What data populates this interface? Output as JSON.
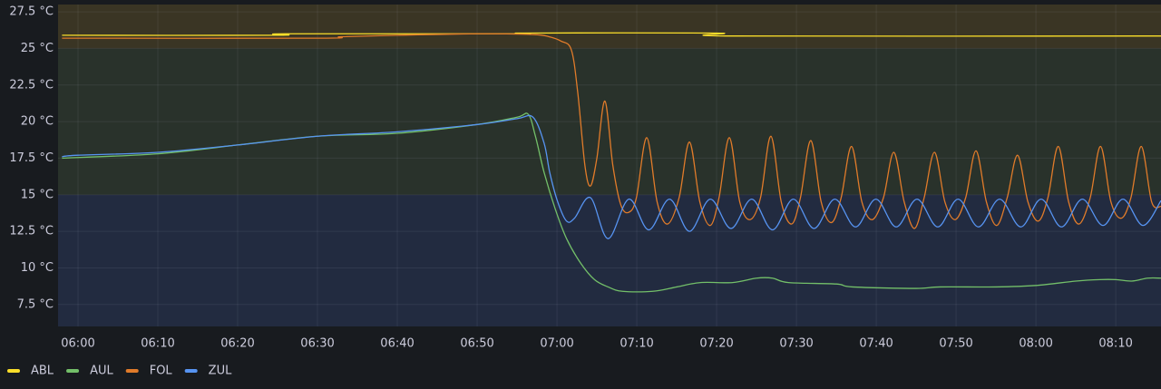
{
  "chart_data": {
    "type": "line",
    "ylim": [
      6,
      28
    ],
    "yticks": [
      {
        "value": 7.5,
        "label": "7.5 °C"
      },
      {
        "value": 10,
        "label": "10 °C"
      },
      {
        "value": 12.5,
        "label": "12.5 °C"
      },
      {
        "value": 15,
        "label": "15 °C"
      },
      {
        "value": 17.5,
        "label": "17.5 °C"
      },
      {
        "value": 20,
        "label": "20 °C"
      },
      {
        "value": 22.5,
        "label": "22.5 °C"
      },
      {
        "value": 25,
        "label": "25 °C"
      },
      {
        "value": 27.5,
        "label": "27.5 °C"
      }
    ],
    "xlim": [
      "05:57:30",
      "08:15:40"
    ],
    "xticks": [
      "06:00",
      "06:10",
      "06:20",
      "06:30",
      "06:40",
      "06:50",
      "07:00",
      "07:10",
      "07:20",
      "07:30",
      "07:40",
      "07:50",
      "08:00",
      "08:10"
    ],
    "grid": true,
    "legend": "bottom-left",
    "thresholds": {
      "base_color": "#222b40",
      "steps": [
        {
          "value": 15,
          "color": "#29322b"
        },
        {
          "value": 25,
          "color": "#3a3524"
        }
      ]
    },
    "series": [
      {
        "name": "ABL",
        "color": "#fade2a",
        "x": [
          "05:58",
          "06:25",
          "06:26",
          "06:55",
          "06:56",
          "07:20",
          "07:22",
          "08:15:40"
        ],
        "values": [
          25.9,
          25.9,
          26.0,
          26.0,
          26.05,
          26.05,
          25.85,
          25.85
        ]
      },
      {
        "name": "AUL",
        "color": "#73bf69",
        "x": [
          "05:58",
          "06:10",
          "06:20",
          "06:30",
          "06:40",
          "06:50",
          "06:55",
          "06:56:24",
          "06:57:18",
          "06:58:24",
          "06:59:48",
          "07:01:12",
          "07:03:00",
          "07:04:42",
          "07:06:24",
          "07:08:12",
          "07:12",
          "07:15",
          "07:18",
          "07:22",
          "07:25",
          "07:27",
          "07:29",
          "07:35",
          "07:37",
          "07:45",
          "07:48",
          "07:55",
          "08:00",
          "08:05",
          "08:08",
          "08:10",
          "08:12",
          "08:14",
          "08:15:40"
        ],
        "values": [
          17.5,
          17.8,
          18.4,
          19.0,
          19.2,
          19.8,
          20.3,
          20.5,
          19.0,
          16.5,
          14.0,
          12.0,
          10.3,
          9.2,
          8.7,
          8.4,
          8.4,
          8.7,
          9.0,
          9.0,
          9.3,
          9.3,
          9.0,
          8.9,
          8.7,
          8.6,
          8.7,
          8.7,
          8.8,
          9.1,
          9.2,
          9.2,
          9.1,
          9.3,
          9.3
        ]
      },
      {
        "name": "FOL",
        "color": "#e07b2a",
        "x": [
          "05:58",
          "06:30",
          "06:33",
          "06:40",
          "06:50",
          "06:57",
          "06:59",
          "07:00:30",
          "07:01:48",
          "07:02:36",
          "07:03:30",
          "07:04:12",
          "07:05:00",
          "07:06:00",
          "07:07:00",
          "07:08:00",
          "07:09:00",
          "07:09:57",
          "07:11:15",
          "07:12:33",
          "07:13:51",
          "07:15:18",
          "07:16:36",
          "07:17:54",
          "07:19:12",
          "07:20:18",
          "07:21:36",
          "07:22:54",
          "07:24:12",
          "07:25:30",
          "07:26:48",
          "07:28:06",
          "07:29:24",
          "07:30:30",
          "07:31:48",
          "07:33:06",
          "07:34:24",
          "07:35:36",
          "07:36:54",
          "07:38:12",
          "07:39:30",
          "07:40:54",
          "07:42:12",
          "07:43:30",
          "07:44:48",
          "07:46:00",
          "07:47:18",
          "07:48:36",
          "07:49:54",
          "07:51:12",
          "07:52:30",
          "07:53:48",
          "07:55:06",
          "07:56:24",
          "07:57:42",
          "07:59:00",
          "08:00:18",
          "08:01:30",
          "08:02:48",
          "08:04:06",
          "08:05:24",
          "08:06:48",
          "08:08:06",
          "08:09:24",
          "08:10:42",
          "08:11:54",
          "08:13:12",
          "08:14:30",
          "08:15:40"
        ],
        "values": [
          25.7,
          25.7,
          25.8,
          25.9,
          26.0,
          25.95,
          25.8,
          25.5,
          24.9,
          22.0,
          17.0,
          15.6,
          17.5,
          21.4,
          17.0,
          14.3,
          13.8,
          14.8,
          18.9,
          14.5,
          13.0,
          14.8,
          18.6,
          14.5,
          12.9,
          14.8,
          18.9,
          14.5,
          13.3,
          14.8,
          19.0,
          14.5,
          13.0,
          14.8,
          18.7,
          14.5,
          13.1,
          14.8,
          18.3,
          14.5,
          13.3,
          14.8,
          17.9,
          14.5,
          12.7,
          14.8,
          17.9,
          14.5,
          13.3,
          14.8,
          18.0,
          14.5,
          12.9,
          14.8,
          17.7,
          14.5,
          13.2,
          14.8,
          18.3,
          14.5,
          13.0,
          14.8,
          18.3,
          14.5,
          13.4,
          14.8,
          18.3,
          14.5,
          14.2
        ]
      },
      {
        "name": "ZUL",
        "color": "#5794f2",
        "x": [
          "05:58",
          "06:00",
          "06:10",
          "06:20",
          "06:30",
          "06:40",
          "06:50",
          "06:55",
          "06:57",
          "06:58:24",
          "06:59:06",
          "07:00:06",
          "07:01:12",
          "07:02:12",
          "07:04:12",
          "07:06:24",
          "07:09:00",
          "07:11:30",
          "07:14:06",
          "07:16:36",
          "07:19:12",
          "07:21:48",
          "07:24:24",
          "07:27:00",
          "07:29:36",
          "07:32:12",
          "07:34:48",
          "07:37:24",
          "07:39:57",
          "07:42:30",
          "07:45:06",
          "07:47:42",
          "07:50:15",
          "07:52:48",
          "07:55:27",
          "07:58:06",
          "08:00:39",
          "08:03:12",
          "08:05:48",
          "08:08:24",
          "08:10:54",
          "08:13:24",
          "08:15:40"
        ],
        "values": [
          17.6,
          17.7,
          17.9,
          18.4,
          19.0,
          19.3,
          19.8,
          20.2,
          20.3,
          18.5,
          16.5,
          14.5,
          13.2,
          13.4,
          14.8,
          12.0,
          14.7,
          12.6,
          14.7,
          12.5,
          14.7,
          12.7,
          14.7,
          12.6,
          14.7,
          12.7,
          14.7,
          12.8,
          14.7,
          12.8,
          14.7,
          12.8,
          14.7,
          12.8,
          14.7,
          12.8,
          14.7,
          12.8,
          14.7,
          12.9,
          14.7,
          12.9,
          14.6
        ]
      }
    ]
  }
}
